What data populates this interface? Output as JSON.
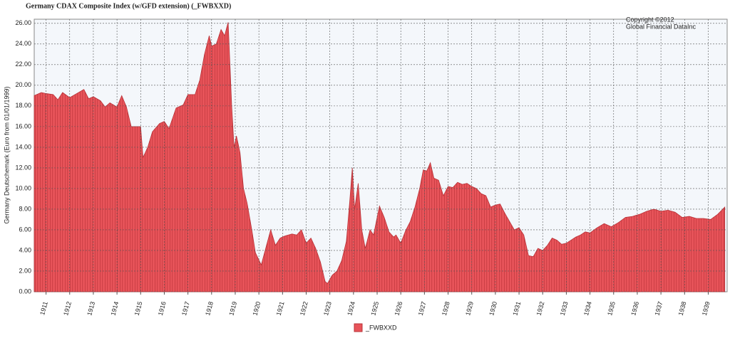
{
  "chart_data": {
    "type": "area",
    "title": "Germany CDAX Composite Index (w/GFD extension) (_FWBXXD)",
    "y_label": "Germany Deutschemark (Euro from 01/01/1999)",
    "annotations": [
      "Copyright ©2012",
      "Global Financial DataInc"
    ],
    "x": [
      1910.5,
      1910.8,
      1911.0,
      1911.3,
      1911.5,
      1911.7,
      1912.0,
      1912.3,
      1912.6,
      1912.8,
      1913.0,
      1913.3,
      1913.5,
      1913.7,
      1914.0,
      1914.2,
      1914.4,
      1914.6,
      1915.0,
      1915.1,
      1915.3,
      1915.5,
      1915.8,
      1916.0,
      1916.2,
      1916.5,
      1916.8,
      1917.0,
      1917.3,
      1917.5,
      1917.7,
      1917.9,
      1918.0,
      1918.2,
      1918.4,
      1918.55,
      1918.7,
      1918.85,
      1918.95,
      1919.05,
      1919.2,
      1919.35,
      1919.5,
      1919.7,
      1919.85,
      1920.1,
      1920.3,
      1920.5,
      1920.7,
      1920.9,
      1921.1,
      1921.4,
      1921.6,
      1921.8,
      1922.0,
      1922.2,
      1922.4,
      1922.6,
      1922.8,
      1922.9,
      1923.1,
      1923.3,
      1923.5,
      1923.7,
      1923.85,
      1923.95,
      1924.05,
      1924.2,
      1924.35,
      1924.5,
      1924.7,
      1924.85,
      1925.0,
      1925.1,
      1925.3,
      1925.5,
      1925.7,
      1925.8,
      1926.0,
      1926.2,
      1926.4,
      1926.6,
      1926.8,
      1926.95,
      1927.1,
      1927.25,
      1927.4,
      1927.6,
      1927.8,
      1928.0,
      1928.2,
      1928.4,
      1928.6,
      1928.8,
      1929.0,
      1929.2,
      1929.4,
      1929.6,
      1929.8,
      1930.0,
      1930.2,
      1930.4,
      1930.6,
      1930.8,
      1931.0,
      1931.2,
      1931.4,
      1931.6,
      1931.8,
      1932.0,
      1932.2,
      1932.4,
      1932.6,
      1932.8,
      1933.0,
      1933.2,
      1933.4,
      1933.6,
      1933.8,
      1934.0,
      1934.3,
      1934.6,
      1934.9,
      1935.2,
      1935.5,
      1935.8,
      1936.1,
      1936.4,
      1936.7,
      1937.0,
      1937.3,
      1937.6,
      1937.9,
      1938.2,
      1938.5,
      1938.8,
      1939.1,
      1939.4,
      1939.7
    ],
    "series": [
      {
        "name": "_FWBXXD",
        "color": "#e8545a",
        "values": [
          19.0,
          19.3,
          19.2,
          19.1,
          18.6,
          19.3,
          18.8,
          19.2,
          19.6,
          18.7,
          18.9,
          18.5,
          17.9,
          18.3,
          17.9,
          19.0,
          17.9,
          16.0,
          16.0,
          13.0,
          14.0,
          15.5,
          16.3,
          16.5,
          15.8,
          17.8,
          18.1,
          19.1,
          19.1,
          20.5,
          23.0,
          24.8,
          23.8,
          24.0,
          25.4,
          24.8,
          26.1,
          18.0,
          14.0,
          15.1,
          13.5,
          10.0,
          8.6,
          6.0,
          3.8,
          2.6,
          4.3,
          6.0,
          4.5,
          5.2,
          5.4,
          5.6,
          5.5,
          6.0,
          4.7,
          5.2,
          4.2,
          2.9,
          1.0,
          0.8,
          1.6,
          2.0,
          3.0,
          4.9,
          9.0,
          12.0,
          8.0,
          10.5,
          6.0,
          4.2,
          6.0,
          5.5,
          7.2,
          8.3,
          7.2,
          5.8,
          5.3,
          5.5,
          4.7,
          5.9,
          6.8,
          8.2,
          10.0,
          11.8,
          11.7,
          12.5,
          11.0,
          10.8,
          9.3,
          10.2,
          10.1,
          10.6,
          10.4,
          10.5,
          10.2,
          10.0,
          9.5,
          9.3,
          8.2,
          8.4,
          8.5,
          7.6,
          6.8,
          6.0,
          6.2,
          5.5,
          3.5,
          3.4,
          4.2,
          4.0,
          4.5,
          5.2,
          5.0,
          4.6,
          4.7,
          5.0,
          5.3,
          5.5,
          5.8,
          5.7,
          6.2,
          6.6,
          6.3,
          6.7,
          7.2,
          7.3,
          7.5,
          7.8,
          8.0,
          7.8,
          7.9,
          7.7,
          7.2,
          7.3,
          7.1,
          7.1,
          7.0,
          7.5,
          8.2
        ]
      }
    ],
    "xlim": [
      1910.5,
      1939.8
    ],
    "xticks": [
      1911,
      1912,
      1913,
      1914,
      1915,
      1916,
      1917,
      1918,
      1919,
      1920,
      1921,
      1922,
      1923,
      1924,
      1925,
      1926,
      1927,
      1928,
      1929,
      1930,
      1931,
      1932,
      1933,
      1934,
      1935,
      1936,
      1937,
      1938,
      1939
    ],
    "ylim": [
      0,
      26.4
    ],
    "yticks": [
      {
        "value": 0,
        "label": "0.00"
      },
      {
        "value": 2,
        "label": "2.00"
      },
      {
        "value": 4,
        "label": "4.00"
      },
      {
        "value": 6,
        "label": "6.00"
      },
      {
        "value": 8,
        "label": "8.00"
      },
      {
        "value": 10,
        "label": "10.00"
      },
      {
        "value": 12,
        "label": "12.00"
      },
      {
        "value": 14,
        "label": "14.00"
      },
      {
        "value": 16,
        "label": "16.00"
      },
      {
        "value": 18,
        "label": "18.00"
      },
      {
        "value": 20,
        "label": "20.00"
      },
      {
        "value": 22,
        "label": "22.00"
      },
      {
        "value": 24,
        "label": "24.00"
      },
      {
        "value": 26,
        "label": "26.00"
      }
    ],
    "grid": true
  }
}
